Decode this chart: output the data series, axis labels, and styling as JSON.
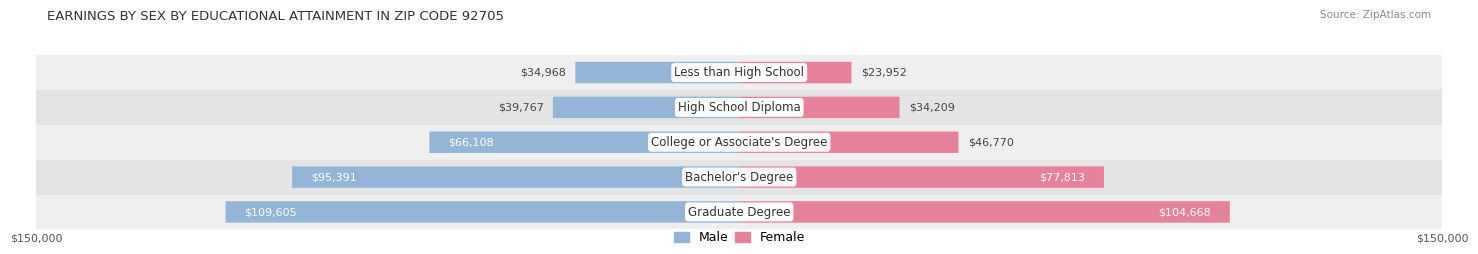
{
  "title": "EARNINGS BY SEX BY EDUCATIONAL ATTAINMENT IN ZIP CODE 92705",
  "source": "Source: ZipAtlas.com",
  "categories": [
    "Less than High School",
    "High School Diploma",
    "College or Associate's Degree",
    "Bachelor's Degree",
    "Graduate Degree"
  ],
  "male_values": [
    34968,
    39767,
    66108,
    95391,
    109605
  ],
  "female_values": [
    23952,
    34209,
    46770,
    77813,
    104668
  ],
  "max_value": 150000,
  "male_color": "#93b5d8",
  "female_color": "#e8829c",
  "row_bg_colors": [
    "#efefef",
    "#e4e4e4"
  ],
  "title_fontsize": 9.5,
  "label_fontsize": 8.5,
  "value_fontsize": 8,
  "tick_fontsize": 8,
  "legend_fontsize": 9,
  "inside_label_threshold": 55000
}
